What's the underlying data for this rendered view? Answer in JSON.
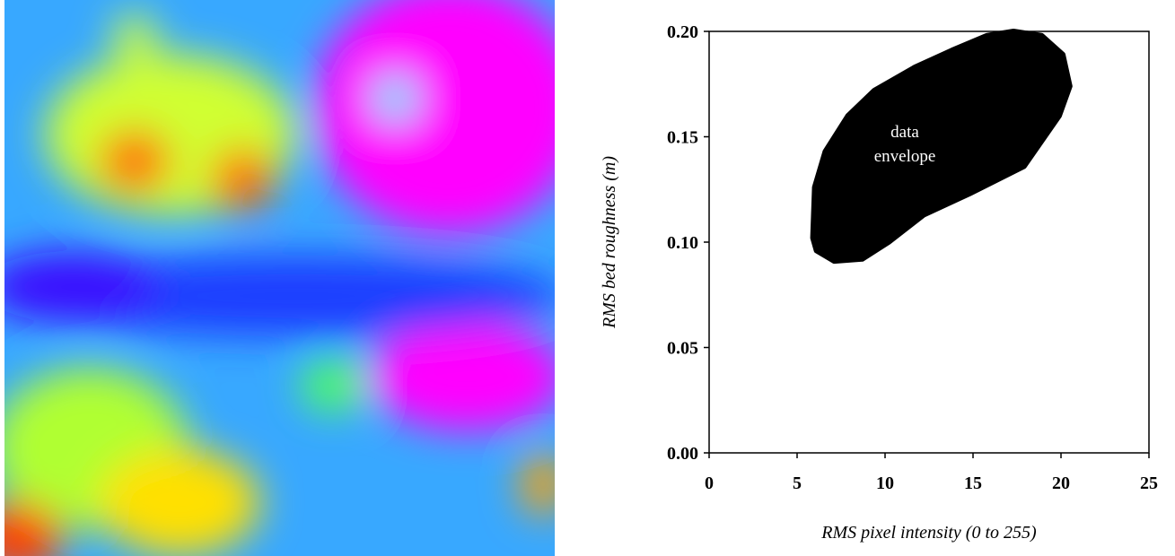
{
  "chart_data": {
    "type": "envelope",
    "xlabel": "RMS pixel intensity (0 to 255)",
    "ylabel": "RMS bed roughness (m)",
    "annotation": [
      "data",
      "envelope"
    ],
    "color": "#000000",
    "x": [
      5.9,
      6.1,
      7.1,
      8.7,
      10.2,
      12.2,
      14.8,
      17.9,
      19.9,
      20.5,
      20.1,
      18.9,
      17.3,
      15.8,
      13.8,
      11.7,
      9.4,
      7.9,
      6.6,
      6.0
    ],
    "y": [
      0.102,
      0.096,
      0.091,
      0.092,
      0.1,
      0.113,
      0.123,
      0.136,
      0.16,
      0.174,
      0.189,
      0.198,
      0.2,
      0.198,
      0.191,
      0.183,
      0.172,
      0.16,
      0.143,
      0.126
    ],
    "xlim": [
      0,
      25
    ],
    "xticks": [
      0,
      5,
      10,
      15,
      20,
      25
    ],
    "ylim": [
      0,
      0.2
    ],
    "yticks": [
      {
        "value": 0,
        "label": "0.00"
      },
      {
        "value": 0.05,
        "label": "0.05"
      },
      {
        "value": 0.1,
        "label": "0.10"
      },
      {
        "value": 0.15,
        "label": "0.15"
      },
      {
        "value": 0.2,
        "label": "0.20"
      }
    ]
  }
}
